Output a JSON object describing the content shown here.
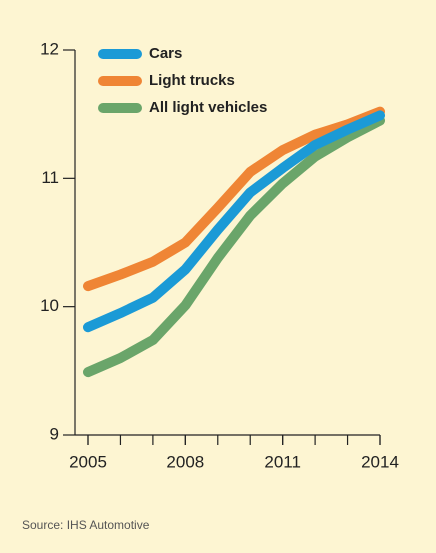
{
  "chart_data": {
    "type": "line",
    "x": [
      2005,
      2006,
      2007,
      2008,
      2009,
      2010,
      2011,
      2012,
      2013,
      2014
    ],
    "series": [
      {
        "name": "Cars",
        "color": "#1b9ad6",
        "values": [
          9.84,
          9.95,
          10.07,
          10.29,
          10.6,
          10.89,
          11.08,
          11.26,
          11.38,
          11.49
        ]
      },
      {
        "name": "Light trucks",
        "color": "#ef8535",
        "values": [
          10.16,
          10.25,
          10.35,
          10.5,
          10.77,
          11.05,
          11.22,
          11.34,
          11.42,
          11.52
        ]
      },
      {
        "name": "All light vehicles",
        "color": "#6aa56a",
        "values": [
          9.49,
          9.6,
          9.74,
          10.01,
          10.38,
          10.71,
          10.96,
          11.17,
          11.32,
          11.45
        ]
      }
    ],
    "xlim": [
      2005,
      2014
    ],
    "xticks": [
      2005,
      2008,
      2011,
      2014
    ],
    "ylim": [
      9,
      12
    ],
    "yticks": [
      9,
      10,
      11,
      12
    ],
    "source": "Source: IHS Automotive"
  }
}
